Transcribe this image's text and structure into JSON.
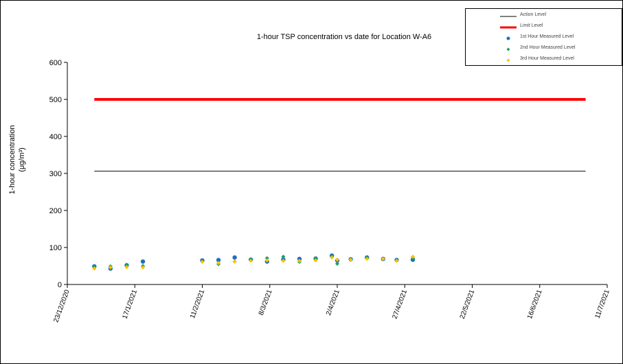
{
  "chart_data": {
    "type": "scatter",
    "title": "1-hour TSP concentration vs date for Location  W-A6",
    "ylabel_line1": "1-hour concentration",
    "ylabel_line2": "(μg/m³)",
    "xlabel": "",
    "ylim": [
      0,
      600
    ],
    "yticks": [
      0,
      100,
      200,
      300,
      400,
      500,
      600
    ],
    "xlim": [
      "2020-12-23",
      "2021-07-11"
    ],
    "xticks": [
      "23/12/2020",
      "17/1/2021",
      "11/2/2021",
      "8/3/2021",
      "2/4/2021",
      "27/4/2021",
      "22/5/2021",
      "16/6/2021",
      "11/7/2021"
    ],
    "grid": false,
    "legend_position": "top-right",
    "legend": [
      {
        "name": "Action Level",
        "color": "#000000",
        "marker": "line"
      },
      {
        "name": "Limit Level",
        "color": "#ff0000",
        "marker": "thick-line"
      },
      {
        "name": "1st Hour Measured Level",
        "color": "#1f6fc0",
        "marker": "circle"
      },
      {
        "name": "2nd Hour Measured Level",
        "color": "#1aa05a",
        "marker": "diamond"
      },
      {
        "name": "3rd Hour Measured Level",
        "color": "#ffc000",
        "marker": "diamond"
      }
    ],
    "reference_lines": [
      {
        "name": "Action Level",
        "y": 306,
        "x": [
          "2021-01-02",
          "2021-07-03"
        ],
        "color": "#000000"
      },
      {
        "name": "Limit Level",
        "y": 500,
        "x": [
          "2021-01-02",
          "2021-07-03"
        ],
        "color": "#ff0000"
      }
    ],
    "series": [
      {
        "name": "1st Hour Measured Level",
        "color": "#1f6fc0",
        "x": [
          "2021-01-02",
          "2021-01-08",
          "2021-01-14",
          "2021-01-20",
          "2021-02-11",
          "2021-02-17",
          "2021-02-23",
          "2021-03-01",
          "2021-03-07",
          "2021-03-13",
          "2021-03-19",
          "2021-03-25",
          "2021-03-31",
          "2021-04-02",
          "2021-04-07",
          "2021-04-13",
          "2021-04-19",
          "2021-04-24",
          "2021-04-30"
        ],
        "values": [
          49,
          43,
          52,
          62,
          65,
          66,
          73,
          67,
          62,
          67,
          69,
          70,
          78,
          65,
          68,
          73,
          69,
          66,
          67
        ]
      },
      {
        "name": "2nd Hour Measured Level",
        "color": "#1aa05a",
        "x": [
          "2021-01-02",
          "2021-01-08",
          "2021-01-14",
          "2021-01-20",
          "2021-02-11",
          "2021-02-17",
          "2021-02-23",
          "2021-03-01",
          "2021-03-07",
          "2021-03-13",
          "2021-03-19",
          "2021-03-25",
          "2021-03-31",
          "2021-04-02",
          "2021-04-07",
          "2021-04-13",
          "2021-04-19",
          "2021-04-24",
          "2021-04-30"
        ],
        "values": [
          47,
          49,
          53,
          50,
          63,
          55,
          62,
          68,
          71,
          75,
          61,
          71,
          76,
          56,
          67,
          73,
          69,
          65,
          71
        ]
      },
      {
        "name": "3rd Hour Measured Level",
        "color": "#ffc000",
        "x": [
          "2021-01-02",
          "2021-01-08",
          "2021-01-14",
          "2021-01-20",
          "2021-02-11",
          "2021-02-17",
          "2021-02-23",
          "2021-03-01",
          "2021-03-07",
          "2021-03-13",
          "2021-03-19",
          "2021-03-25",
          "2021-03-31",
          "2021-04-02",
          "2021-04-07",
          "2021-04-13",
          "2021-04-19",
          "2021-04-24",
          "2021-04-30"
        ],
        "values": [
          43,
          46,
          47,
          46,
          61,
          58,
          62,
          64,
          65,
          64,
          64,
          65,
          73,
          67,
          67,
          69,
          69,
          64,
          75
        ]
      }
    ]
  }
}
